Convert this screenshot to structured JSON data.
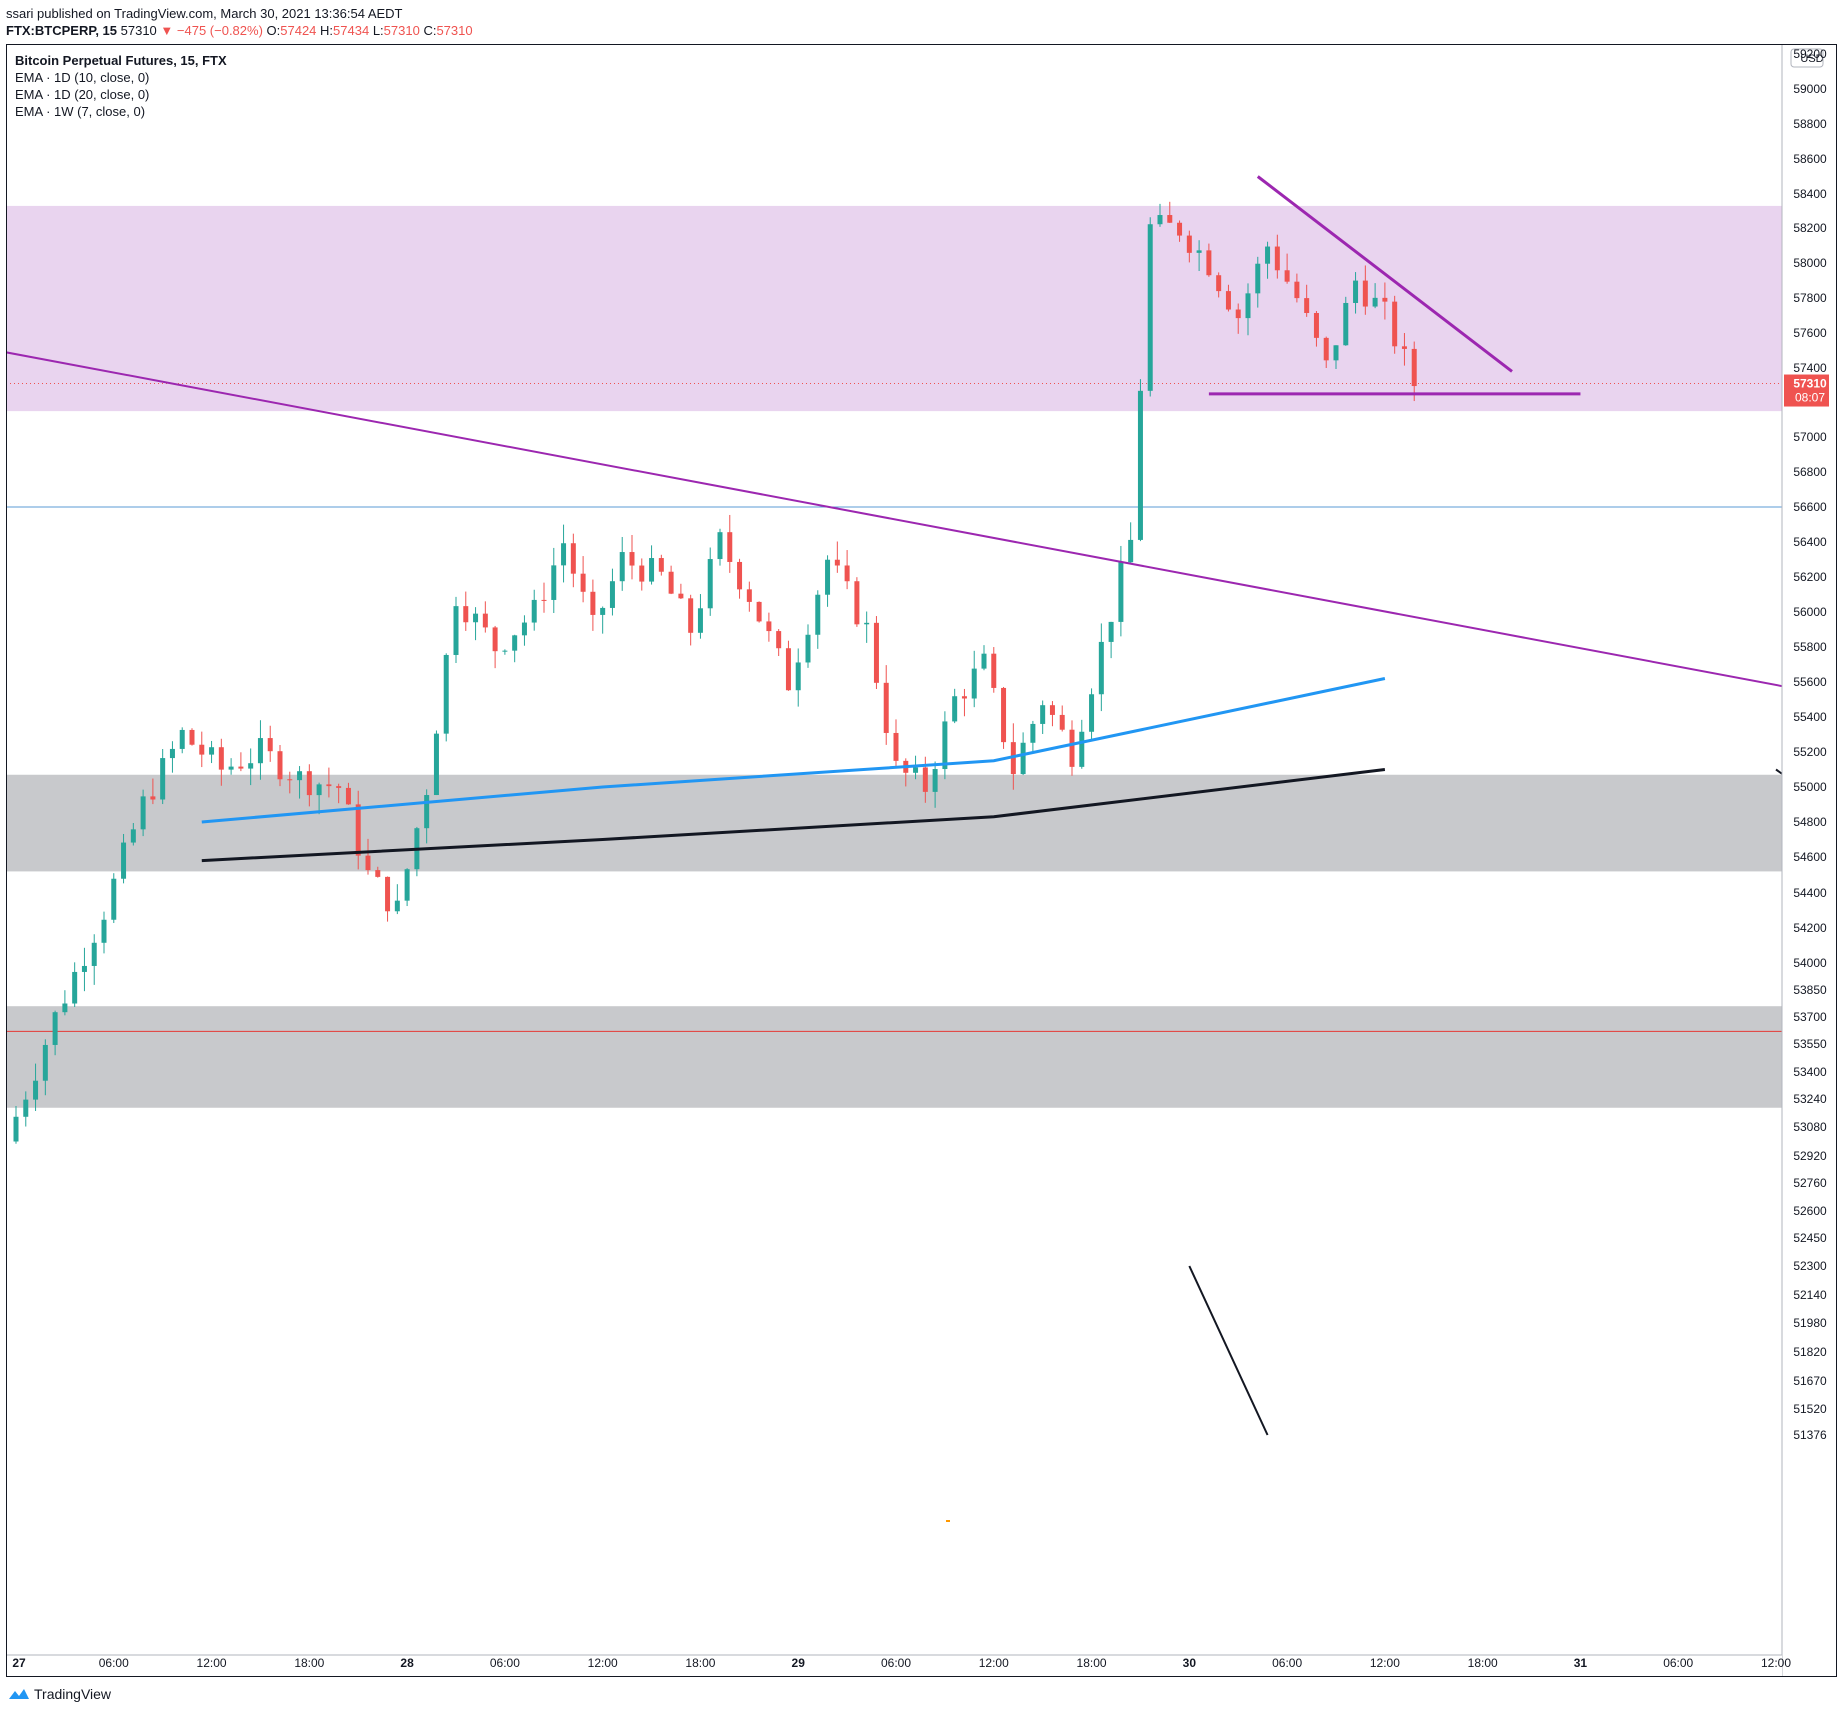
{
  "header": {
    "published_line": "ssari published on TradingView.com, March 30, 2021 13:36:54 AEDT",
    "symbol": "FTX:BTCPERP, 15",
    "last": "57310",
    "change": "▼ −475 (−0.82%)",
    "o_label": "O:",
    "o_value": "57424",
    "h_label": "H:",
    "h_value": "57434",
    "l_label": "L:",
    "l_value": "57310",
    "c_label": "C:",
    "c_value": "57310"
  },
  "legend": {
    "title": "Bitcoin Perpetual Futures, 15, FTX",
    "studies": [
      "EMA · 1D (10, close, 0)",
      "EMA · 1D (20, close, 0)",
      "EMA · 1W (7, close, 0)"
    ]
  },
  "footer": {
    "brand": "TradingView"
  },
  "colors": {
    "up": "#26a69a",
    "down": "#ef5350",
    "zone_purple": "#e9d4ef",
    "zone_gray": "#c8c9cc",
    "trend_purple": "#9c27b0",
    "ema_blue": "#2196f3",
    "ema_black": "#131722"
  },
  "chart_data": {
    "type": "candlestick",
    "title": "Bitcoin Perpetual Futures, 15, FTX",
    "currency": "USD",
    "last_price": {
      "value": 57310,
      "label": "57310",
      "countdown": "08:07"
    },
    "x_range": [
      -2,
      186
    ],
    "y_labels": [
      {
        "v": 59200,
        "t": "59200"
      },
      {
        "v": 59000,
        "t": "59000"
      },
      {
        "v": 58800,
        "t": "58800"
      },
      {
        "v": 58600,
        "t": "58600"
      },
      {
        "v": 58400,
        "t": "58400"
      },
      {
        "v": 58200,
        "t": "58200"
      },
      {
        "v": 58000,
        "t": "58000"
      },
      {
        "v": 57800,
        "t": "57800"
      },
      {
        "v": 57600,
        "t": "57600"
      },
      {
        "v": 57400,
        "t": "57400"
      },
      {
        "v": 57000,
        "t": "57000"
      },
      {
        "v": 56800,
        "t": "56800"
      },
      {
        "v": 56600,
        "t": "56600"
      },
      {
        "v": 56400,
        "t": "56400"
      },
      {
        "v": 56200,
        "t": "56200"
      },
      {
        "v": 56000,
        "t": "56000"
      },
      {
        "v": 55800,
        "t": "55800"
      },
      {
        "v": 55600,
        "t": "55600"
      },
      {
        "v": 55400,
        "t": "55400"
      },
      {
        "v": 55200,
        "t": "55200"
      },
      {
        "v": 55000,
        "t": "55000"
      },
      {
        "v": 54800,
        "t": "54800"
      },
      {
        "v": 54600,
        "t": "54600"
      },
      {
        "v": 54400,
        "t": "54400"
      },
      {
        "v": 54200,
        "t": "54200"
      },
      {
        "v": 54000,
        "t": "54000"
      },
      {
        "v": 53850,
        "t": "53850"
      },
      {
        "v": 53700,
        "t": "53700"
      },
      {
        "v": 53550,
        "t": "53550"
      },
      {
        "v": 53400,
        "t": "53400"
      },
      {
        "v": 53240,
        "t": "53240"
      },
      {
        "v": 53080,
        "t": "53080"
      },
      {
        "v": 52920,
        "t": "52920"
      },
      {
        "v": 52760,
        "t": "52760"
      },
      {
        "v": 52600,
        "t": "52600"
      },
      {
        "v": 52450,
        "t": "52450"
      },
      {
        "v": 52300,
        "t": "52300"
      },
      {
        "v": 52140,
        "t": "52140"
      },
      {
        "v": 51980,
        "t": "51980"
      },
      {
        "v": 51820,
        "t": "51820"
      },
      {
        "v": 51670,
        "t": "51670"
      },
      {
        "v": 51520,
        "t": "51520"
      },
      {
        "v": 51376,
        "t": "51376"
      }
    ],
    "x_ticks": [
      {
        "i": 0,
        "t": "27",
        "bold": true
      },
      {
        "i": 10,
        "t": "06:00"
      },
      {
        "i": 20,
        "t": "12:00"
      },
      {
        "i": 30,
        "t": "18:00"
      },
      {
        "i": 40,
        "t": "28",
        "bold": true
      },
      {
        "i": 50,
        "t": "06:00"
      },
      {
        "i": 60,
        "t": "12:00"
      },
      {
        "i": 70,
        "t": "18:00"
      },
      {
        "i": 80,
        "t": "29",
        "bold": true
      },
      {
        "i": 90,
        "t": "06:00"
      },
      {
        "i": 100,
        "t": "12:00"
      },
      {
        "i": 110,
        "t": "18:00"
      },
      {
        "i": 120,
        "t": "30",
        "bold": true
      },
      {
        "i": 130,
        "t": "06:00"
      },
      {
        "i": 140,
        "t": "12:00"
      },
      {
        "i": 150,
        "t": "18:00"
      },
      {
        "i": 160,
        "t": "31",
        "bold": true
      },
      {
        "i": 170,
        "t": "06:00"
      },
      {
        "i": 180,
        "t": "12:00"
      }
    ],
    "zones": [
      {
        "from": 57150,
        "to": 58330,
        "color": "purple"
      },
      {
        "from": 54520,
        "to": 55070,
        "color": "gray"
      },
      {
        "from": 53190,
        "to": 53760,
        "color": "gray"
      }
    ],
    "hlines": [
      {
        "v": 56600,
        "color": "#5b9bd5"
      },
      {
        "v": 53620,
        "color": "#e53935"
      }
    ],
    "anchors": [
      [
        0,
        53000
      ],
      [
        5,
        53700
      ],
      [
        10,
        54300
      ],
      [
        14,
        54900
      ],
      [
        18,
        55300
      ],
      [
        22,
        55100
      ],
      [
        26,
        55200
      ],
      [
        30,
        55050
      ],
      [
        34,
        55000
      ],
      [
        37,
        54500
      ],
      [
        40,
        54300
      ],
      [
        43,
        55000
      ],
      [
        46,
        56100
      ],
      [
        50,
        55800
      ],
      [
        54,
        56000
      ],
      [
        57,
        56400
      ],
      [
        60,
        55900
      ],
      [
        63,
        56300
      ],
      [
        67,
        56200
      ],
      [
        70,
        55900
      ],
      [
        73,
        56400
      ],
      [
        76,
        56100
      ],
      [
        80,
        55600
      ],
      [
        84,
        56300
      ],
      [
        88,
        55900
      ],
      [
        91,
        55100
      ],
      [
        94,
        55000
      ],
      [
        97,
        55500
      ],
      [
        100,
        55700
      ],
      [
        103,
        55100
      ],
      [
        106,
        55500
      ],
      [
        109,
        55200
      ],
      [
        112,
        55800
      ],
      [
        115,
        56400
      ],
      [
        117,
        58200
      ],
      [
        120,
        58200
      ],
      [
        123,
        58000
      ],
      [
        126,
        57700
      ],
      [
        129,
        58100
      ],
      [
        132,
        57800
      ],
      [
        135,
        57400
      ],
      [
        138,
        57900
      ],
      [
        141,
        57700
      ],
      [
        144,
        57310
      ]
    ],
    "trendlines": [
      {
        "name": "descending-trendline",
        "color": "purple",
        "points": [
          [
            -2,
            57500
          ],
          [
            186,
            55520
          ]
        ]
      },
      {
        "name": "triangle-upper-line",
        "color": "purple",
        "points": [
          [
            127,
            58500
          ],
          [
            153,
            57380
          ]
        ]
      },
      {
        "name": "triangle-lower-line",
        "color": "purple",
        "points": [
          [
            122,
            57250
          ],
          [
            160,
            57250
          ]
        ]
      },
      {
        "name": "ema-blue",
        "color": "blue",
        "points": [
          [
            19,
            54800
          ],
          [
            60,
            55000
          ],
          [
            100,
            55150
          ],
          [
            140,
            55620
          ]
        ]
      },
      {
        "name": "ema-black",
        "color": "black",
        "points": [
          [
            19,
            54580
          ],
          [
            60,
            54700
          ],
          [
            100,
            54830
          ],
          [
            140,
            55100
          ]
        ]
      },
      {
        "name": "pointer-line-upper-right",
        "color": "black",
        "points": [
          [
            180,
            55100
          ],
          [
            188,
            54780
          ]
        ]
      },
      {
        "name": "pointer-line-bottom",
        "color": "black",
        "points": [
          [
            120,
            52300
          ],
          [
            128,
            51376
          ]
        ]
      }
    ]
  }
}
